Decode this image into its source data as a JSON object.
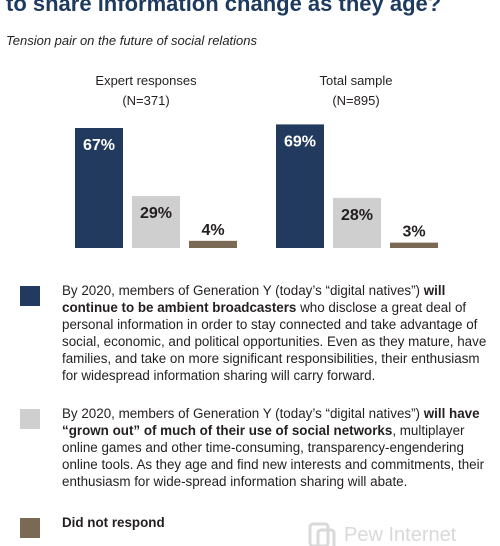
{
  "header": {
    "title": "to share information change as they age?",
    "subtitle": "Tension pair on the future of social relations"
  },
  "colors": {
    "broadcasters": "#223a5e",
    "grown_out": "#cfcfcf",
    "no_response": "#7a6a55"
  },
  "chart_data": {
    "type": "bar",
    "categories": [
      "Continue to be ambient broadcasters",
      "Grown out of social networks",
      "Did not respond"
    ],
    "panels": [
      {
        "title": "Expert responses",
        "n": "(N=371)",
        "values": [
          67,
          29,
          4
        ],
        "labels": [
          "67%",
          "29%",
          "4%"
        ]
      },
      {
        "title": "Total sample",
        "n": "(N=895)",
        "values": [
          69,
          28,
          3
        ],
        "labels": [
          "69%",
          "28%",
          "3%"
        ]
      }
    ],
    "ylim": [
      0,
      100
    ]
  },
  "legend": {
    "item1": {
      "pre": "By 2020, members of Generation Y (today’s “digital natives”) ",
      "bold": "will continue to be ambient broadcasters",
      "post": " who disclose a great deal of personal information in order to stay connected and take advantage of social, economic, and political opportunities. Even as they mature, have families, and take on more significant responsibilities, their enthusiasm for widespread information sharing will carry forward."
    },
    "item2": {
      "pre": "By 2020, members of Generation Y (today’s “digital natives”) ",
      "bold": "will have “grown out” of much of their use of social networks",
      "post": ", multiplayer online games and other time-consuming, transparency-engendering online tools. As they age and find new interests and commitments, their enthusiasm for wide-spread information sharing will abate."
    },
    "item3": {
      "bold": "Did not respond"
    }
  },
  "watermark": {
    "text": "Pew Internet"
  }
}
